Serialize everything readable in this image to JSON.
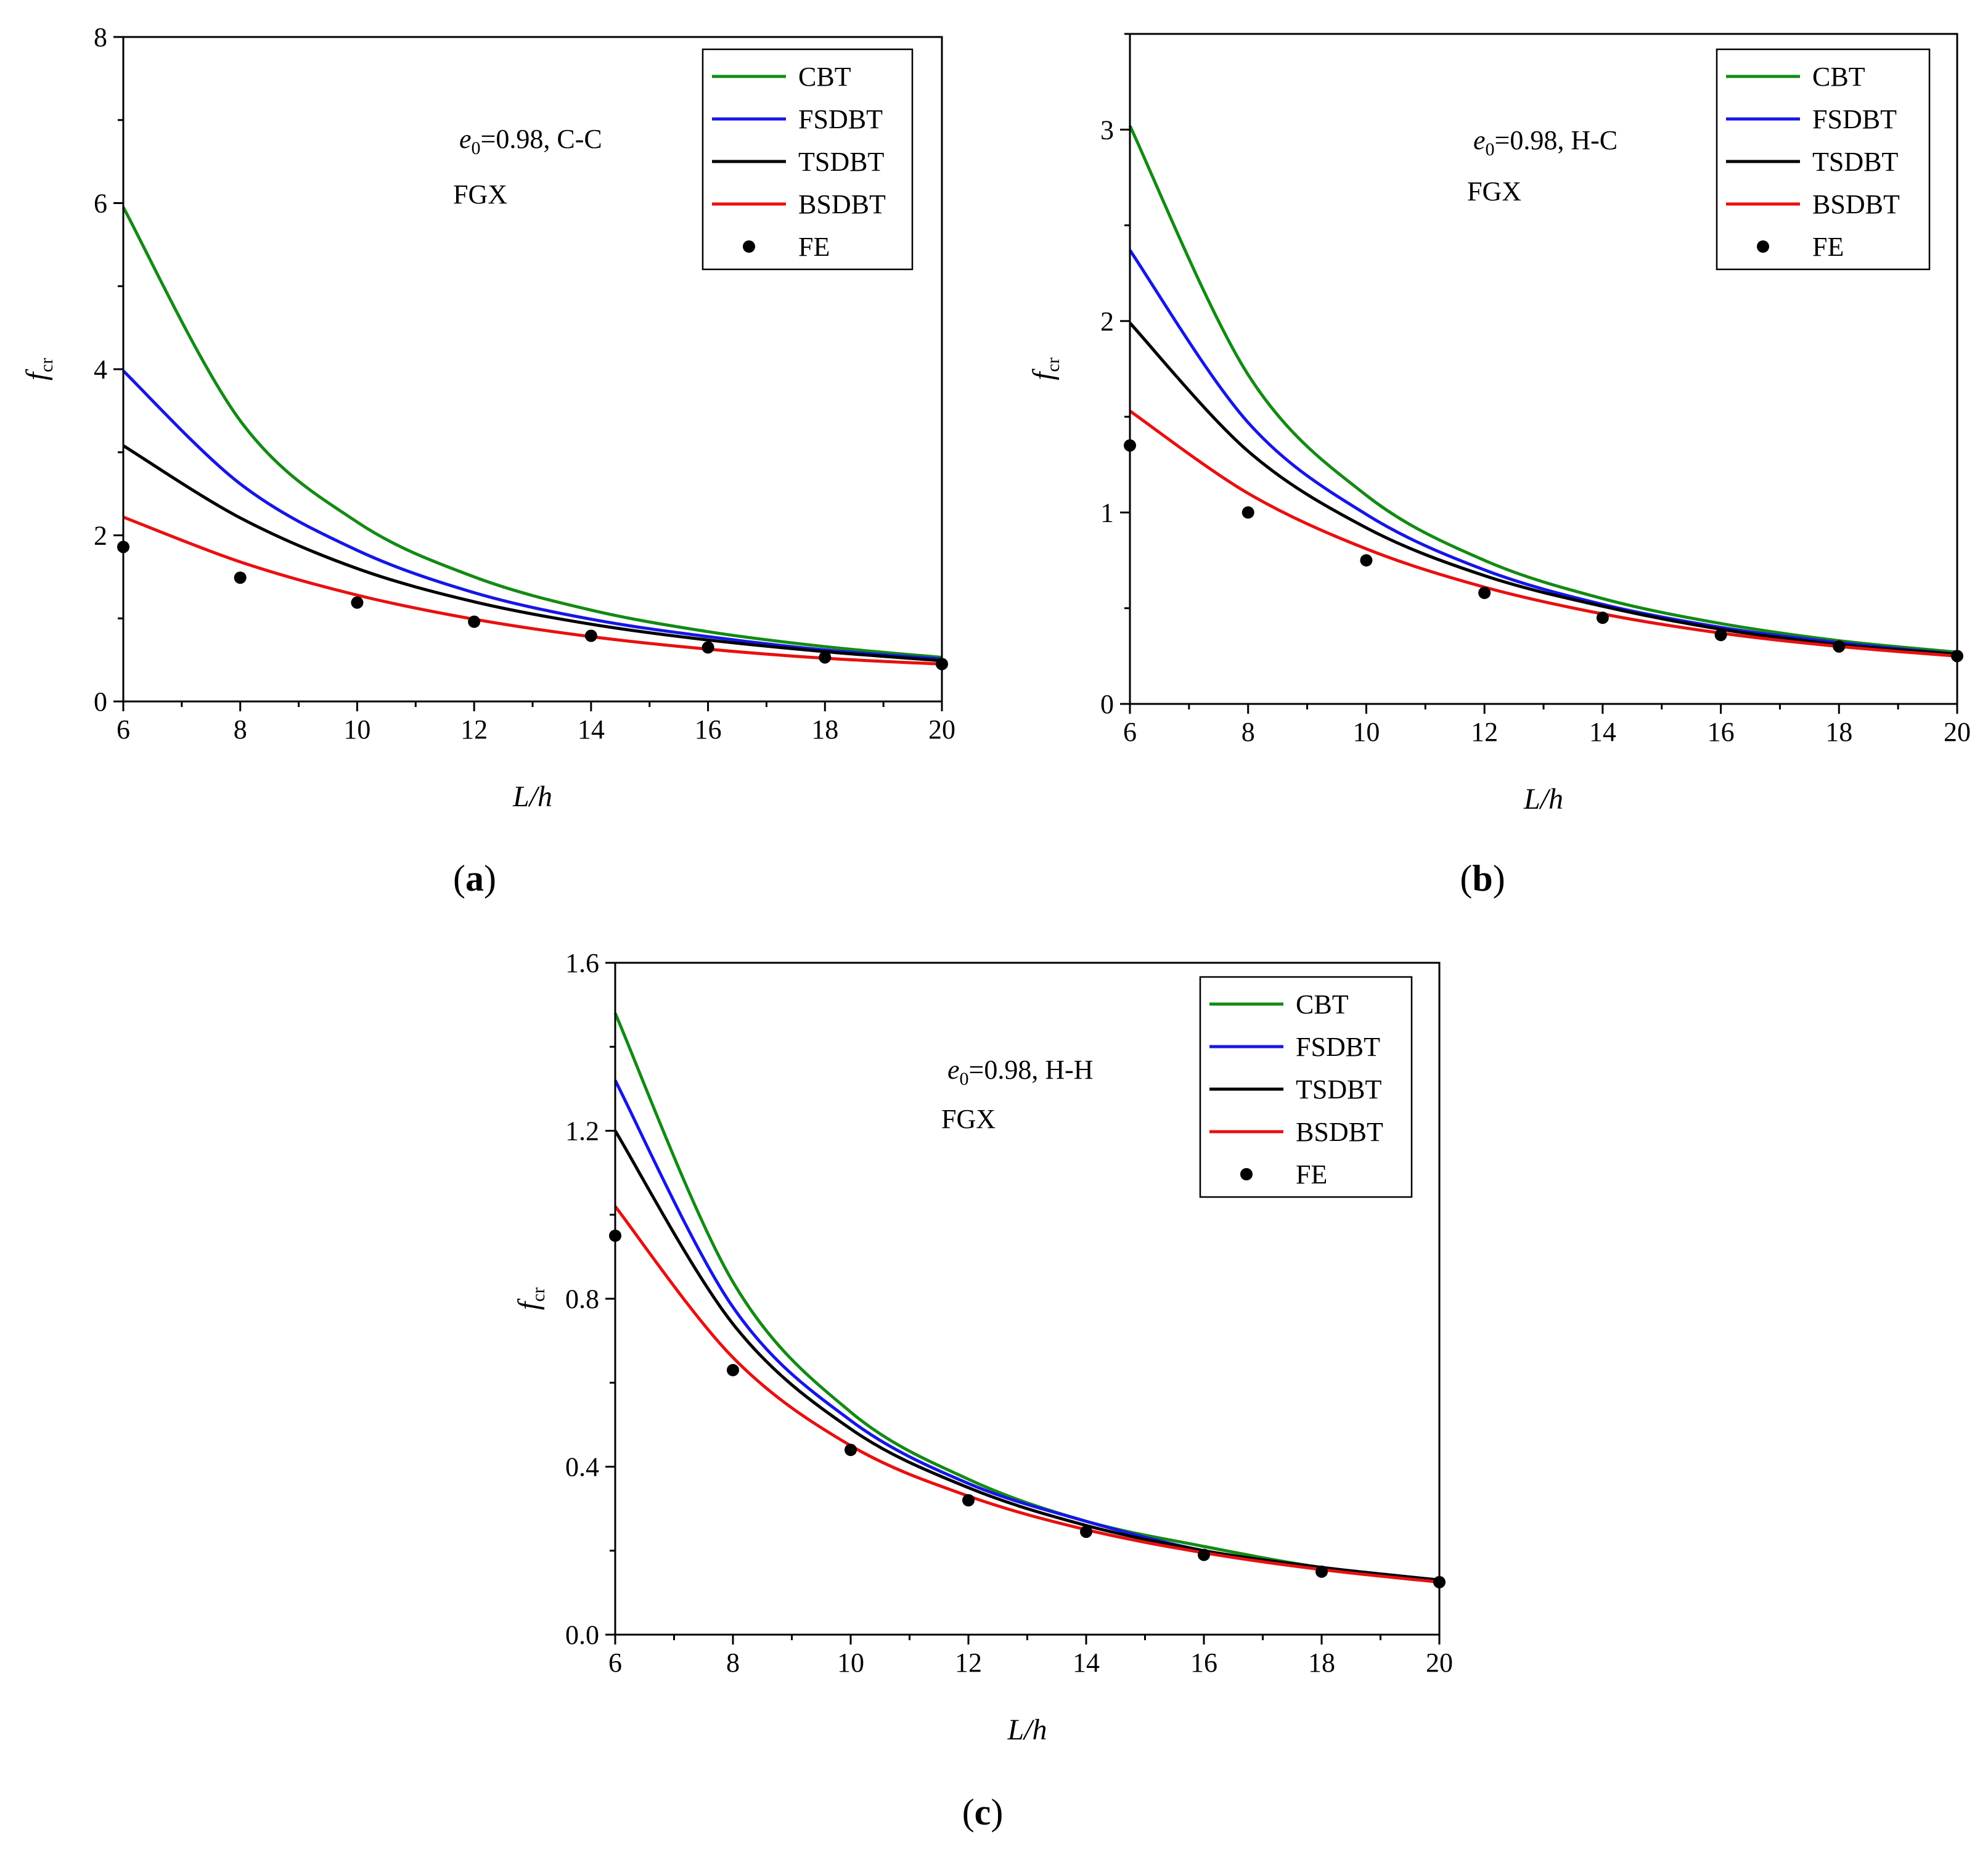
{
  "chart_data": [
    {
      "type": "line",
      "panel_label": "a",
      "xlabel": "L/h",
      "ylabel": "f",
      "ylabel_sub": "cr",
      "xlim": [
        6,
        20
      ],
      "ylim": [
        0,
        8
      ],
      "xticks": [
        6,
        8,
        10,
        12,
        14,
        16,
        18,
        20
      ],
      "yticks": [
        "0",
        "2",
        "4",
        "6",
        "8"
      ],
      "annotation": {
        "e_symbol": "e",
        "e_sub": "0",
        "condition": "=0.98, C-C",
        "material": "FGX"
      },
      "legend_position": "top-right",
      "x": [
        6,
        8,
        10,
        12,
        14,
        16,
        18,
        20
      ],
      "series": [
        {
          "name": "CBT",
          "kind": "line",
          "color": "#138a13",
          "values": [
            5.95,
            3.38,
            2.16,
            1.5,
            1.1,
            0.84,
            0.66,
            0.53
          ]
        },
        {
          "name": "FSDBT",
          "kind": "line",
          "color": "#1616e6",
          "values": [
            3.98,
            2.62,
            1.82,
            1.31,
            0.99,
            0.78,
            0.62,
            0.51
          ]
        },
        {
          "name": "TSDBT",
          "kind": "line",
          "color": "#000000",
          "values": [
            3.08,
            2.21,
            1.6,
            1.2,
            0.93,
            0.74,
            0.6,
            0.49
          ]
        },
        {
          "name": "BSDBT",
          "kind": "line",
          "color": "#e81010",
          "values": [
            2.22,
            1.68,
            1.28,
            0.99,
            0.78,
            0.63,
            0.52,
            0.45
          ]
        },
        {
          "name": "FE",
          "kind": "scatter",
          "color": "#000000",
          "values": [
            1.86,
            1.49,
            1.19,
            0.96,
            0.79,
            0.65,
            0.53,
            0.45
          ]
        }
      ]
    },
    {
      "type": "line",
      "panel_label": "b",
      "xlabel": "L/h",
      "ylabel": "f",
      "ylabel_sub": "cr",
      "xlim": [
        6,
        20
      ],
      "ylim": [
        0,
        3.5
      ],
      "xticks": [
        6,
        8,
        10,
        12,
        14,
        16,
        18,
        20
      ],
      "yticks": [
        "0",
        "1",
        "2",
        "3"
      ],
      "annotation": {
        "e_symbol": "e",
        "e_sub": "0",
        "condition": "=0.98, H-C",
        "material": "FGX"
      },
      "legend_position": "top-right",
      "x": [
        6,
        8,
        10,
        12,
        14,
        16,
        18,
        20
      ],
      "series": [
        {
          "name": "CBT",
          "kind": "line",
          "color": "#138a13",
          "values": [
            3.02,
            1.72,
            1.09,
            0.75,
            0.55,
            0.42,
            0.33,
            0.27
          ]
        },
        {
          "name": "FSDBT",
          "kind": "line",
          "color": "#1616e6",
          "values": [
            2.37,
            1.47,
            0.99,
            0.7,
            0.52,
            0.4,
            0.32,
            0.26
          ]
        },
        {
          "name": "TSDBT",
          "kind": "line",
          "color": "#000000",
          "values": [
            1.99,
            1.32,
            0.92,
            0.67,
            0.51,
            0.39,
            0.31,
            0.26
          ]
        },
        {
          "name": "BSDBT",
          "kind": "line",
          "color": "#e81010",
          "values": [
            1.53,
            1.1,
            0.81,
            0.61,
            0.47,
            0.37,
            0.3,
            0.25
          ]
        },
        {
          "name": "FE",
          "kind": "scatter",
          "color": "#000000",
          "values": [
            1.35,
            1.0,
            0.75,
            0.58,
            0.45,
            0.36,
            0.3,
            0.25
          ]
        }
      ]
    },
    {
      "type": "line",
      "panel_label": "c",
      "xlabel": "L/h",
      "ylabel": "f",
      "ylabel_sub": "cr",
      "xlim": [
        6,
        20
      ],
      "ylim": [
        0,
        1.6
      ],
      "xticks": [
        6,
        8,
        10,
        12,
        14,
        16,
        18,
        20
      ],
      "yticks": [
        "0.0",
        "0.4",
        "0.8",
        "1.2",
        "1.6"
      ],
      "annotation": {
        "e_symbol": "e",
        "e_sub": "0",
        "condition": "=0.98, H-H",
        "material": "FGX"
      },
      "legend_position": "top-right",
      "x": [
        6,
        8,
        10,
        12,
        14,
        16,
        18,
        20
      ],
      "series": [
        {
          "name": "CBT",
          "kind": "line",
          "color": "#138a13",
          "values": [
            1.48,
            0.84,
            0.53,
            0.37,
            0.27,
            0.21,
            0.16,
            0.13
          ]
        },
        {
          "name": "FSDBT",
          "kind": "line",
          "color": "#1616e6",
          "values": [
            1.32,
            0.78,
            0.51,
            0.36,
            0.27,
            0.2,
            0.16,
            0.13
          ]
        },
        {
          "name": "TSDBT",
          "kind": "line",
          "color": "#000000",
          "values": [
            1.2,
            0.74,
            0.49,
            0.35,
            0.26,
            0.2,
            0.16,
            0.13
          ]
        },
        {
          "name": "BSDBT",
          "kind": "line",
          "color": "#e81010",
          "values": [
            1.02,
            0.66,
            0.45,
            0.33,
            0.25,
            0.195,
            0.155,
            0.125
          ]
        },
        {
          "name": "FE",
          "kind": "scatter",
          "color": "#000000",
          "values": [
            0.95,
            0.63,
            0.44,
            0.32,
            0.245,
            0.19,
            0.15,
            0.125
          ]
        }
      ]
    }
  ]
}
